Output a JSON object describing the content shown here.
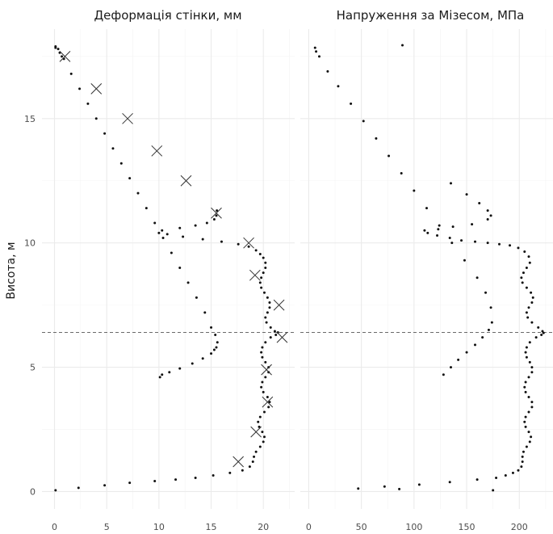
{
  "ylabel": "Висота, м",
  "chart_data": [
    {
      "type": "scatter",
      "title": "Деформація стінки, мм",
      "ylabel": "Висота, м",
      "xlim": [
        -1.2,
        23.0
      ],
      "ylim": [
        -0.7,
        18.6
      ],
      "x_ticks": [
        0,
        5,
        10,
        15,
        20
      ],
      "y_ticks": [
        0,
        5,
        10,
        15
      ],
      "grid": true,
      "reference_line": {
        "y": 6.4,
        "style": "dashed"
      },
      "series": [
        {
          "marker": "dot",
          "points": [
            [
              0.1,
              17.9
            ],
            [
              0.35,
              17.8
            ],
            [
              0.5,
              17.65
            ],
            [
              0.7,
              17.5
            ],
            [
              1.6,
              16.8
            ],
            [
              2.4,
              16.2
            ],
            [
              3.2,
              15.6
            ],
            [
              4.0,
              15.0
            ],
            [
              4.8,
              14.4
            ],
            [
              5.6,
              13.8
            ],
            [
              6.4,
              13.2
            ],
            [
              7.2,
              12.6
            ],
            [
              8.0,
              12.0
            ],
            [
              8.8,
              11.4
            ],
            [
              9.6,
              10.8
            ],
            [
              10.4,
              10.2
            ],
            [
              11.2,
              9.6
            ],
            [
              12.0,
              9.0
            ],
            [
              12.8,
              8.4
            ],
            [
              13.6,
              7.8
            ],
            [
              14.4,
              7.2
            ],
            [
              15.0,
              6.6
            ],
            [
              15.4,
              6.3
            ],
            [
              15.6,
              6.0
            ],
            [
              15.5,
              5.8
            ],
            [
              15.3,
              5.7
            ],
            [
              15.0,
              5.55
            ],
            [
              14.2,
              5.35
            ],
            [
              13.2,
              5.15
            ],
            [
              12.0,
              4.95
            ],
            [
              11.0,
              4.8
            ],
            [
              10.3,
              4.7
            ],
            [
              10.1,
              4.6
            ],
            [
              0.1,
              17.85
            ],
            [
              0.9,
              17.4
            ],
            [
              15.55,
              11.3
            ],
            [
              15.5,
              11.1
            ],
            [
              15.3,
              10.95
            ],
            [
              14.6,
              10.8
            ],
            [
              13.5,
              10.7
            ],
            [
              12.0,
              10.6
            ],
            [
              10.3,
              10.5
            ],
            [
              10.0,
              10.4
            ],
            [
              10.8,
              10.35
            ],
            [
              12.3,
              10.25
            ],
            [
              14.2,
              10.15
            ],
            [
              16.0,
              10.05
            ],
            [
              17.6,
              9.95
            ],
            [
              18.6,
              9.85
            ],
            [
              19.3,
              9.7
            ],
            [
              19.7,
              9.55
            ],
            [
              20.0,
              9.4
            ],
            [
              20.2,
              9.2
            ],
            [
              20.2,
              9.0
            ],
            [
              20.0,
              8.8
            ],
            [
              19.8,
              8.6
            ],
            [
              19.7,
              8.4
            ],
            [
              19.8,
              8.2
            ],
            [
              20.1,
              8.0
            ],
            [
              20.4,
              7.8
            ],
            [
              20.6,
              7.6
            ],
            [
              20.6,
              7.4
            ],
            [
              20.4,
              7.2
            ],
            [
              20.2,
              7.0
            ],
            [
              20.3,
              6.8
            ],
            [
              20.7,
              6.6
            ],
            [
              21.1,
              6.45
            ],
            [
              21.4,
              6.4
            ],
            [
              21.2,
              6.3
            ],
            [
              20.7,
              6.2
            ],
            [
              20.2,
              6.0
            ],
            [
              19.9,
              5.8
            ],
            [
              19.8,
              5.6
            ],
            [
              19.9,
              5.4
            ],
            [
              20.2,
              5.2
            ],
            [
              20.5,
              5.0
            ],
            [
              20.5,
              4.8
            ],
            [
              20.2,
              4.6
            ],
            [
              19.9,
              4.4
            ],
            [
              19.8,
              4.2
            ],
            [
              20.0,
              4.0
            ],
            [
              20.4,
              3.8
            ],
            [
              20.6,
              3.6
            ],
            [
              20.5,
              3.4
            ],
            [
              20.1,
              3.2
            ],
            [
              19.7,
              3.0
            ],
            [
              19.5,
              2.8
            ],
            [
              19.6,
              2.6
            ],
            [
              19.9,
              2.4
            ],
            [
              20.1,
              2.2
            ],
            [
              20.0,
              2.0
            ],
            [
              19.7,
              1.8
            ],
            [
              19.3,
              1.6
            ],
            [
              19.1,
              1.4
            ],
            [
              19.0,
              1.2
            ],
            [
              18.7,
              1.0
            ],
            [
              18.0,
              0.85
            ],
            [
              16.8,
              0.75
            ],
            [
              15.2,
              0.65
            ],
            [
              13.5,
              0.55
            ],
            [
              11.6,
              0.48
            ],
            [
              9.6,
              0.42
            ],
            [
              7.2,
              0.35
            ],
            [
              4.8,
              0.25
            ],
            [
              2.3,
              0.15
            ],
            [
              0.1,
              0.05
            ]
          ]
        },
        {
          "marker": "cross",
          "points": [
            [
              1.0,
              17.5
            ],
            [
              4.0,
              16.2
            ],
            [
              7.0,
              15.0
            ],
            [
              9.8,
              13.7
            ],
            [
              12.6,
              12.5
            ],
            [
              15.5,
              11.2
            ],
            [
              18.6,
              10.0
            ],
            [
              19.2,
              8.7
            ],
            [
              21.5,
              7.5
            ],
            [
              21.8,
              6.2
            ],
            [
              20.3,
              4.9
            ],
            [
              20.4,
              3.6
            ],
            [
              19.3,
              2.4
            ],
            [
              17.6,
              1.2
            ]
          ]
        }
      ]
    },
    {
      "type": "scatter",
      "title": "Напруження за Мізесом, МПа",
      "ylabel": "Висота, м",
      "xlim": [
        -8,
        232
      ],
      "ylim": [
        -0.7,
        18.6
      ],
      "x_ticks": [
        0,
        50,
        100,
        150,
        200
      ],
      "y_ticks": [
        0,
        5,
        10,
        15
      ],
      "grid": true,
      "reference_line": {
        "y": 6.4,
        "style": "dashed"
      },
      "series": [
        {
          "marker": "dot",
          "points": [
            [
              89,
              17.95
            ],
            [
              6,
              17.85
            ],
            [
              7,
              17.7
            ],
            [
              10,
              17.5
            ],
            [
              18,
              16.9
            ],
            [
              28,
              16.3
            ],
            [
              40,
              15.6
            ],
            [
              52,
              14.9
            ],
            [
              64,
              14.2
            ],
            [
              76,
              13.5
            ],
            [
              88,
              12.8
            ],
            [
              100,
              12.1
            ],
            [
              112,
              11.4
            ],
            [
              124,
              10.7
            ],
            [
              136,
              10.0
            ],
            [
              148,
              9.3
            ],
            [
              160,
              8.6
            ],
            [
              168,
              8.0
            ],
            [
              173,
              7.4
            ],
            [
              174,
              6.8
            ],
            [
              171,
              6.5
            ],
            [
              165,
              6.2
            ],
            [
              158,
              5.9
            ],
            [
              150,
              5.6
            ],
            [
              142,
              5.3
            ],
            [
              135,
              5.0
            ],
            [
              128,
              4.7
            ],
            [
              135,
              12.4
            ],
            [
              150,
              11.95
            ],
            [
              162,
              11.6
            ],
            [
              170,
              11.3
            ],
            [
              173,
              11.1
            ],
            [
              170,
              10.95
            ],
            [
              155,
              10.75
            ],
            [
              137,
              10.65
            ],
            [
              123,
              10.55
            ],
            [
              110,
              10.5
            ],
            [
              113,
              10.4
            ],
            [
              122,
              10.3
            ],
            [
              134,
              10.2
            ],
            [
              145,
              10.1
            ],
            [
              158,
              10.05
            ],
            [
              170,
              10.0
            ],
            [
              181,
              9.95
            ],
            [
              191,
              9.9
            ],
            [
              199,
              9.8
            ],
            [
              205,
              9.65
            ],
            [
              209,
              9.45
            ],
            [
              210,
              9.2
            ],
            [
              207,
              9.0
            ],
            [
              204,
              8.8
            ],
            [
              202,
              8.6
            ],
            [
              203,
              8.4
            ],
            [
              207,
              8.2
            ],
            [
              211,
              8.0
            ],
            [
              213,
              7.8
            ],
            [
              212,
              7.6
            ],
            [
              209,
              7.4
            ],
            [
              207,
              7.2
            ],
            [
              208,
              7.0
            ],
            [
              212,
              6.8
            ],
            [
              218,
              6.6
            ],
            [
              222,
              6.45
            ],
            [
              223,
              6.38
            ],
            [
              221,
              6.3
            ],
            [
              216,
              6.2
            ],
            [
              210,
              6.0
            ],
            [
              207,
              5.8
            ],
            [
              206,
              5.6
            ],
            [
              207,
              5.4
            ],
            [
              210,
              5.2
            ],
            [
              212,
              5.0
            ],
            [
              212,
              4.8
            ],
            [
              209,
              4.6
            ],
            [
              206,
              4.4
            ],
            [
              205,
              4.2
            ],
            [
              206,
              4.0
            ],
            [
              209,
              3.8
            ],
            [
              212,
              3.6
            ],
            [
              212,
              3.4
            ],
            [
              209,
              3.2
            ],
            [
              206,
              3.0
            ],
            [
              205,
              2.8
            ],
            [
              206,
              2.6
            ],
            [
              209,
              2.4
            ],
            [
              211,
              2.2
            ],
            [
              210,
              2.0
            ],
            [
              207,
              1.8
            ],
            [
              204,
              1.6
            ],
            [
              203,
              1.4
            ],
            [
              203,
              1.2
            ],
            [
              202,
              1.0
            ],
            [
              199,
              0.85
            ],
            [
              194,
              0.75
            ],
            [
              187,
              0.65
            ],
            [
              178,
              0.55
            ],
            [
              160,
              0.48
            ],
            [
              134,
              0.38
            ],
            [
              105,
              0.28
            ],
            [
              72,
              0.2
            ],
            [
              47,
              0.12
            ],
            [
              86,
              0.1
            ],
            [
              175,
              0.05
            ]
          ]
        }
      ]
    }
  ]
}
